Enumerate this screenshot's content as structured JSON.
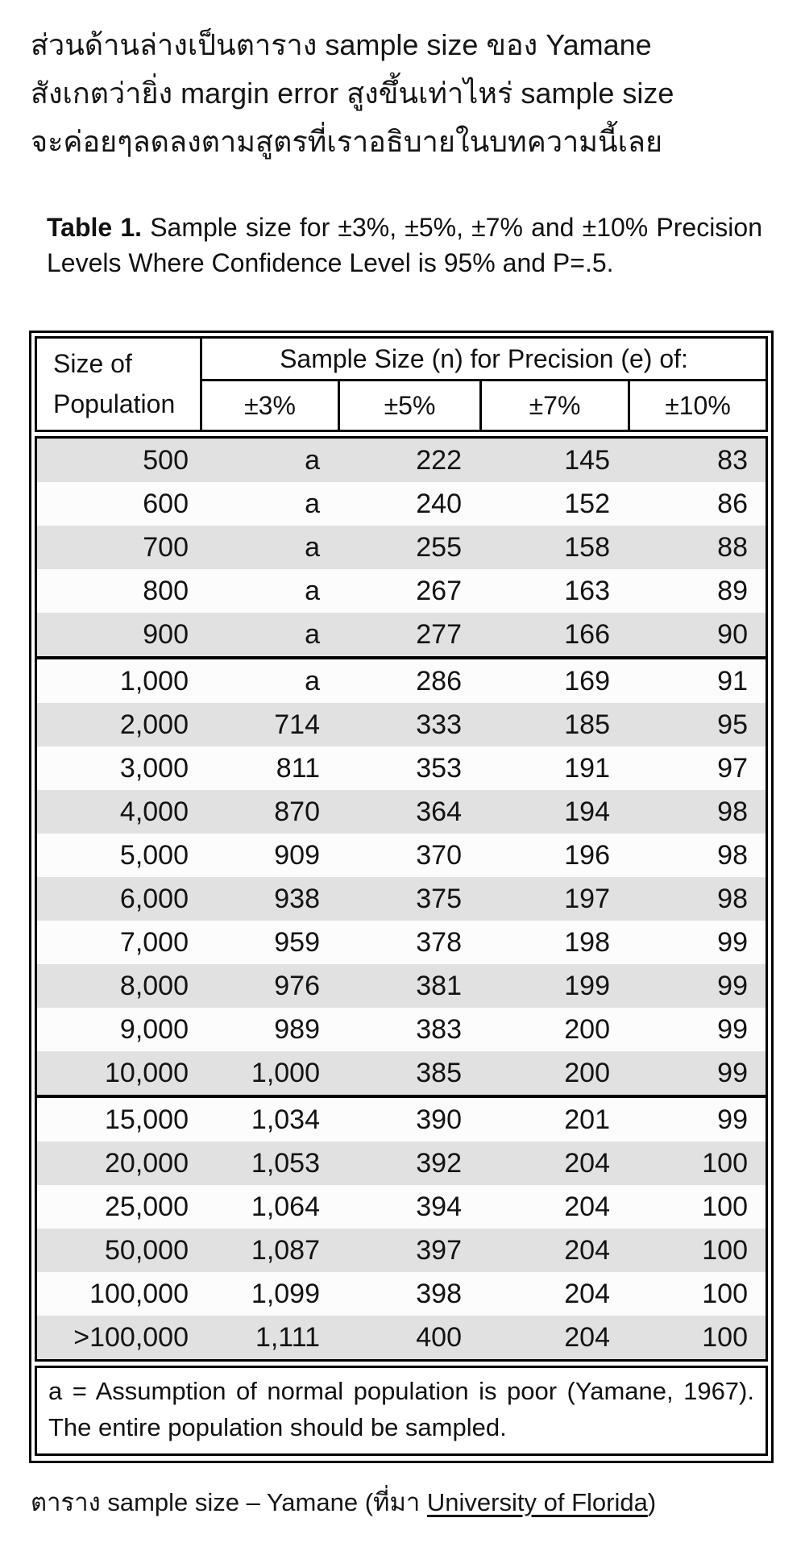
{
  "intro": {
    "lines": [
      "ส่วนด้านล่างเป็นตาราง sample size ของ Yamane",
      "สังเกตว่ายิ่ง margin error สูงขึ้นเท่าไหร่ sample size",
      "จะค่อยๆลดลงตามสูตรที่เราอธิบายในบทความนี้เลย"
    ]
  },
  "table_caption": {
    "label": "Table 1.",
    "rest": "  Sample size for ±3%, ±5%, ±7% and ±10% Precision Levels Where Confidence Level is 95% and P=.5."
  },
  "table": {
    "col1_header": [
      "Size of",
      "Population"
    ],
    "span_header": "Sample Size (n) for Precision (e) of:",
    "precision_headers": [
      "±3%",
      "±5%",
      "±7%",
      "±10%"
    ],
    "sections": [
      {
        "rows": [
          [
            "500",
            "a",
            "222",
            "145",
            "83"
          ],
          [
            "600",
            "a",
            "240",
            "152",
            "86"
          ],
          [
            "700",
            "a",
            "255",
            "158",
            "88"
          ],
          [
            "800",
            "a",
            "267",
            "163",
            "89"
          ],
          [
            "900",
            "a",
            "277",
            "166",
            "90"
          ]
        ]
      },
      {
        "rows": [
          [
            "1,000",
            "a",
            "286",
            "169",
            "91"
          ],
          [
            "2,000",
            "714",
            "333",
            "185",
            "95"
          ],
          [
            "3,000",
            "811",
            "353",
            "191",
            "97"
          ],
          [
            "4,000",
            "870",
            "364",
            "194",
            "98"
          ],
          [
            "5,000",
            "909",
            "370",
            "196",
            "98"
          ],
          [
            "6,000",
            "938",
            "375",
            "197",
            "98"
          ],
          [
            "7,000",
            "959",
            "378",
            "198",
            "99"
          ],
          [
            "8,000",
            "976",
            "381",
            "199",
            "99"
          ],
          [
            "9,000",
            "989",
            "383",
            "200",
            "99"
          ],
          [
            "10,000",
            "1,000",
            "385",
            "200",
            "99"
          ]
        ]
      },
      {
        "rows": [
          [
            "15,000",
            "1,034",
            "390",
            "201",
            "99"
          ],
          [
            "20,000",
            "1,053",
            "392",
            "204",
            "100"
          ],
          [
            "25,000",
            "1,064",
            "394",
            "204",
            "100"
          ],
          [
            "50,000",
            "1,087",
            "397",
            "204",
            "100"
          ],
          [
            "100,000",
            "1,099",
            "398",
            "204",
            "100"
          ],
          [
            ">100,000",
            "1,111",
            "400",
            "204",
            "100"
          ]
        ]
      }
    ],
    "footnote": "a = Assumption of normal population is poor (Yamane, 1967).  The entire population should be sampled."
  },
  "bottom_caption": {
    "prefix": "ตาราง sample size – Yamane (ที่มา ",
    "link": "University of Florida",
    "suffix": ")"
  },
  "colors": {
    "row_shade": "#e1e1e1",
    "table_border": "#000000",
    "text": "#151515"
  }
}
